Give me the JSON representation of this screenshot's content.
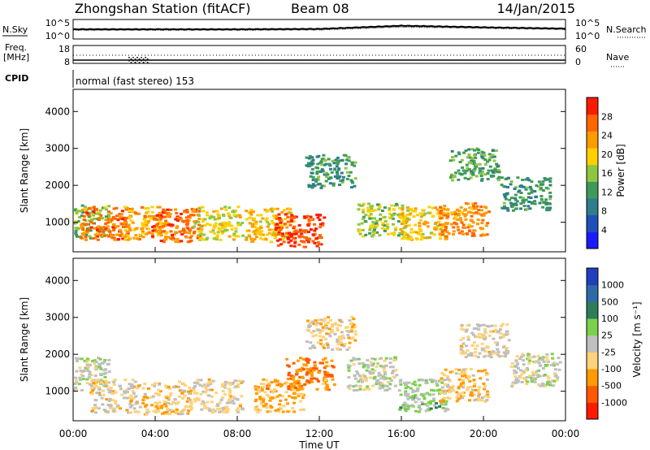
{
  "header": {
    "station": "Zhongshan Station (fitACF)",
    "beam": "Beam 08",
    "date": "14/Jan/2015"
  },
  "noise_panel": {
    "left_label": "N.Sky",
    "right_label": "N.Search",
    "left_ticks": [
      "10^5",
      "10^0"
    ],
    "right_ticks": [
      "10^5",
      "10^0"
    ]
  },
  "freq_panel": {
    "left_label_1": "Freq.",
    "left_label_2": "[MHz]",
    "right_label": "Nave",
    "left_ticks": [
      "18",
      "8"
    ],
    "right_ticks": [
      "60",
      "0"
    ]
  },
  "cpid": {
    "label": "CPID",
    "mode": "normal (fast stereo) 153"
  },
  "time_axis": {
    "title": "Time UT",
    "ticks": [
      "00:00",
      "04:00",
      "08:00",
      "12:00",
      "16:00",
      "20:00",
      "00:00"
    ]
  },
  "colors": {
    "power": [
      "#1a1aff",
      "#1f4fb8",
      "#2e7d8c",
      "#3f9a5a",
      "#8fc640",
      "#ffd000",
      "#ff9a00",
      "#ff6600",
      "#ff1a00"
    ],
    "velocity": [
      "#ff1a00",
      "#ff5a00",
      "#ff9a00",
      "#ffd27a",
      "#bfbfbf",
      "#7ad14a",
      "#2e7d5a",
      "#2e6aa8",
      "#1f3fbf"
    ]
  },
  "chart_data": [
    {
      "type": "line",
      "title": "",
      "xlabel": "Time UT",
      "ylabel": "N.Sky",
      "ylim": [
        "10^0",
        "10^5"
      ],
      "x": [
        "00:00",
        "04:00",
        "08:00",
        "12:00",
        "16:00",
        "20:00",
        "00:00"
      ],
      "series": [
        {
          "values": [
            2.5,
            2.5,
            2.5,
            2.6,
            3.6,
            3.1,
            2.7
          ]
        },
        {
          "values": [
            2.2,
            2.2,
            2.2,
            2.3,
            3.2,
            2.8,
            2.4
          ]
        }
      ]
    },
    {
      "type": "heatmap",
      "title": "",
      "xlabel": "Time UT",
      "ylabel": "Slant Range [km]",
      "yticks": [
        "1000",
        "2000",
        "3000",
        "4000"
      ],
      "ylim": [
        200,
        4600
      ],
      "colorbar": {
        "label": "Power [dB]",
        "ticks": [
          "4",
          "8",
          "12",
          "16",
          "20",
          "24",
          "28"
        ]
      },
      "regions": [
        {
          "hour": 0.5,
          "range": 1050,
          "power": 14
        },
        {
          "hour": 1.5,
          "range": 1000,
          "power": 26
        },
        {
          "hour": 3.5,
          "range": 1000,
          "power": 22
        },
        {
          "hour": 5.0,
          "range": 950,
          "power": 26
        },
        {
          "hour": 7.0,
          "range": 1000,
          "power": 18
        },
        {
          "hour": 9.5,
          "range": 950,
          "power": 20
        },
        {
          "hour": 11.0,
          "range": 800,
          "power": 28
        },
        {
          "hour": 12.5,
          "range": 2400,
          "power": 10
        },
        {
          "hour": 15.0,
          "range": 1100,
          "power": 16
        },
        {
          "hour": 17.0,
          "range": 1000,
          "power": 20
        },
        {
          "hour": 19.0,
          "range": 1100,
          "power": 24
        },
        {
          "hour": 19.5,
          "range": 2600,
          "power": 12
        },
        {
          "hour": 22.0,
          "range": 1800,
          "power": 10
        }
      ]
    },
    {
      "type": "heatmap",
      "title": "",
      "xlabel": "Time UT",
      "ylabel": "Slant Range [km]",
      "yticks": [
        "1000",
        "2000",
        "3000",
        "4000"
      ],
      "ylim": [
        200,
        4600
      ],
      "colorbar": {
        "label": "Velocity [m s⁻¹]",
        "ticks": [
          "-1000",
          "-500",
          "-100",
          "-25",
          "25",
          "100",
          "500",
          "1000"
        ]
      },
      "regions": [
        {
          "hour": 0.5,
          "range": 1500,
          "velocity": 0
        },
        {
          "hour": 2.0,
          "range": 900,
          "velocity": -200
        },
        {
          "hour": 4.5,
          "range": 850,
          "velocity": -300
        },
        {
          "hour": 7.0,
          "range": 900,
          "velocity": -150
        },
        {
          "hour": 10.0,
          "range": 900,
          "velocity": -400
        },
        {
          "hour": 11.5,
          "range": 1500,
          "velocity": -600
        },
        {
          "hour": 12.5,
          "range": 2600,
          "velocity": -200
        },
        {
          "hour": 14.5,
          "range": 1500,
          "velocity": 0
        },
        {
          "hour": 17.0,
          "range": 900,
          "velocity": 150
        },
        {
          "hour": 19.0,
          "range": 1200,
          "velocity": -300
        },
        {
          "hour": 20.0,
          "range": 2400,
          "velocity": -150
        },
        {
          "hour": 22.5,
          "range": 1600,
          "velocity": 0
        }
      ]
    }
  ]
}
